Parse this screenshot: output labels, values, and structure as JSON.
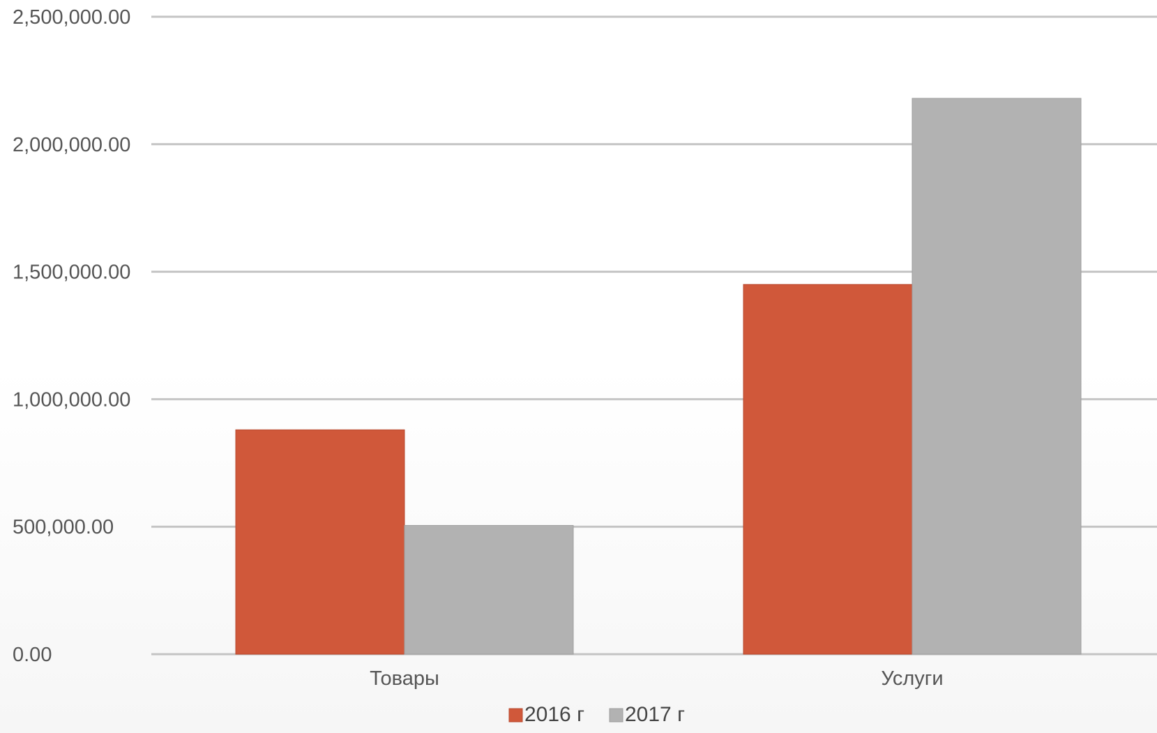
{
  "chart_data": {
    "type": "bar",
    "categories": [
      "Товары",
      "Услуги"
    ],
    "series": [
      {
        "name": "2016 г",
        "values": [
          880000,
          1450000
        ],
        "color": "#d0583a"
      },
      {
        "name": "2017 г",
        "values": [
          505000,
          2180000
        ],
        "color": "#b2b2b2"
      }
    ],
    "ylim": [
      0,
      2500000
    ],
    "yticks": [
      0,
      500000,
      1000000,
      1500000,
      2000000,
      2500000
    ],
    "ytick_labels": [
      "0.00",
      "500,000.00",
      "1,000,000.00",
      "1,500,000.00",
      "2,000,000.00",
      "2,500,000.00"
    ],
    "grid": true,
    "gridline_color": "#c4c4c4",
    "legend_position": "bottom-center",
    "title": "",
    "xlabel": "",
    "ylabel": ""
  }
}
